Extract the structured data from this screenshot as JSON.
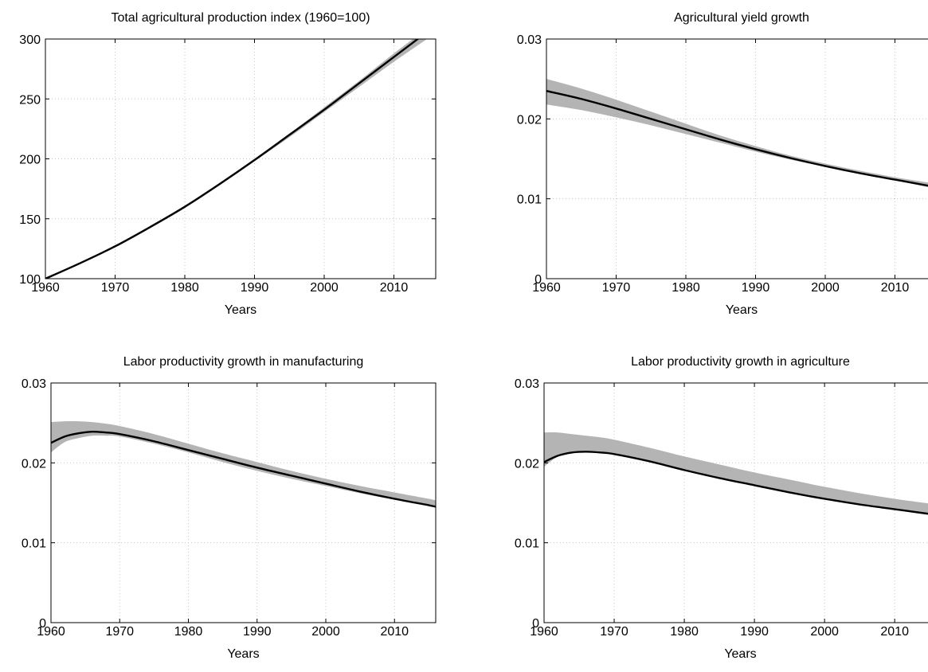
{
  "chart_data": [
    {
      "type": "line",
      "title": "Total agricultural production index (1960=100)",
      "xlabel": "Years",
      "ylabel": "",
      "xlim": [
        1960,
        2016
      ],
      "ylim": [
        100,
        300
      ],
      "xticks": [
        1960,
        1970,
        1980,
        1990,
        2000,
        2010
      ],
      "xtick_labels": [
        "1960",
        "1970",
        "1980",
        "1990",
        "2000",
        "2010"
      ],
      "yticks": [
        100,
        150,
        200,
        250,
        300
      ],
      "ytick_labels": [
        "100",
        "150",
        "200",
        "250",
        "300"
      ],
      "grid": true,
      "x": [
        1960,
        1965,
        1970,
        1975,
        1980,
        1985,
        1990,
        1995,
        2000,
        2005,
        2010,
        2015,
        2016
      ],
      "series": [
        {
          "values": [
            100,
            113,
            127,
            143,
            160,
            179,
            199,
            220,
            241,
            263,
            285,
            307,
            312
          ]
        }
      ],
      "band": {
        "lower": [
          100,
          113,
          126,
          142,
          159,
          178,
          198,
          218,
          239,
          260,
          281,
          301,
          305
        ],
        "upper": [
          100,
          113,
          127,
          143,
          161,
          180,
          200,
          221,
          243,
          265,
          288,
          310,
          316
        ]
      },
      "colors": {
        "line": "#000000",
        "band": "#b4b4b4"
      }
    },
    {
      "type": "line",
      "title": "Agricultural yield growth",
      "xlabel": "Years",
      "ylabel": "",
      "xlim": [
        1960,
        2016
      ],
      "ylim": [
        0,
        0.03
      ],
      "xticks": [
        1960,
        1970,
        1980,
        1990,
        2000,
        2010
      ],
      "xtick_labels": [
        "1960",
        "1970",
        "1980",
        "1990",
        "2000",
        "2010"
      ],
      "yticks": [
        0,
        0.01,
        0.02,
        0.03
      ],
      "ytick_labels": [
        "0",
        "0.01",
        "0.02",
        "0.03"
      ],
      "grid": true,
      "x": [
        1960,
        1965,
        1970,
        1975,
        1980,
        1985,
        1990,
        1995,
        2000,
        2005,
        2010,
        2015,
        2016
      ],
      "series": [
        {
          "values": [
            0.0235,
            0.0225,
            0.0213,
            0.02,
            0.0187,
            0.0174,
            0.0162,
            0.0151,
            0.0141,
            0.0132,
            0.0124,
            0.0116,
            0.0114
          ]
        }
      ],
      "band": {
        "lower": [
          0.0218,
          0.0211,
          0.0202,
          0.0192,
          0.0181,
          0.017,
          0.0159,
          0.0149,
          0.014,
          0.0131,
          0.0123,
          0.0114,
          0.0112
        ],
        "upper": [
          0.025,
          0.0238,
          0.0224,
          0.0209,
          0.0194,
          0.0179,
          0.0166,
          0.0154,
          0.0144,
          0.0135,
          0.0127,
          0.012,
          0.0118
        ]
      },
      "colors": {
        "line": "#000000",
        "band": "#b4b4b4"
      }
    },
    {
      "type": "line",
      "title": "Labor productivity growth in manufacturing",
      "xlabel": "Years",
      "ylabel": "",
      "xlim": [
        1960,
        2016
      ],
      "ylim": [
        0,
        0.03
      ],
      "xticks": [
        1960,
        1970,
        1980,
        1990,
        2000,
        2010
      ],
      "xtick_labels": [
        "1960",
        "1970",
        "1980",
        "1990",
        "2000",
        "2010"
      ],
      "yticks": [
        0,
        0.01,
        0.02,
        0.03
      ],
      "ytick_labels": [
        "0",
        "0.01",
        "0.02",
        "0.03"
      ],
      "grid": true,
      "x": [
        1960,
        1962,
        1964,
        1966,
        1968,
        1970,
        1975,
        1980,
        1985,
        1990,
        1995,
        2000,
        2005,
        2010,
        2015,
        2016
      ],
      "series": [
        {
          "values": [
            0.0225,
            0.0233,
            0.0237,
            0.0239,
            0.0238,
            0.0236,
            0.0227,
            0.0216,
            0.0205,
            0.0194,
            0.0184,
            0.0174,
            0.0164,
            0.0155,
            0.0147,
            0.0145
          ]
        }
      ],
      "band": {
        "lower": [
          0.0213,
          0.0226,
          0.0231,
          0.0234,
          0.0234,
          0.0233,
          0.0224,
          0.0213,
          0.0201,
          0.019,
          0.018,
          0.0171,
          0.0162,
          0.0154,
          0.0146,
          0.0144
        ],
        "upper": [
          0.0251,
          0.0252,
          0.0252,
          0.0251,
          0.0249,
          0.0246,
          0.0236,
          0.0224,
          0.0212,
          0.0201,
          0.019,
          0.018,
          0.0171,
          0.0163,
          0.0155,
          0.0153
        ]
      },
      "colors": {
        "line": "#000000",
        "band": "#b4b4b4"
      }
    },
    {
      "type": "line",
      "title": "Labor productivity growth in agriculture",
      "xlabel": "Years",
      "ylabel": "",
      "xlim": [
        1960,
        2016
      ],
      "ylim": [
        0,
        0.03
      ],
      "xticks": [
        1960,
        1970,
        1980,
        1990,
        2000,
        2010
      ],
      "xtick_labels": [
        "1960",
        "1970",
        "1980",
        "1990",
        "2000",
        "2010"
      ],
      "yticks": [
        0,
        0.01,
        0.02,
        0.03
      ],
      "ytick_labels": [
        "0",
        "0.01",
        "0.02",
        "0.03"
      ],
      "grid": true,
      "x": [
        1960,
        1962,
        1964,
        1966,
        1968,
        1970,
        1975,
        1980,
        1985,
        1990,
        1995,
        2000,
        2005,
        2010,
        2015,
        2016
      ],
      "series": [
        {
          "values": [
            0.0201,
            0.0209,
            0.0213,
            0.0214,
            0.0213,
            0.0211,
            0.0202,
            0.0191,
            0.0181,
            0.0172,
            0.0163,
            0.0155,
            0.0148,
            0.0142,
            0.0136,
            0.0135
          ]
        }
      ],
      "band": {
        "lower": [
          0.0195,
          0.0208,
          0.0213,
          0.0214,
          0.0213,
          0.0211,
          0.0202,
          0.0191,
          0.0181,
          0.0172,
          0.0163,
          0.0155,
          0.0148,
          0.0142,
          0.0136,
          0.0135
        ],
        "upper": [
          0.0238,
          0.0238,
          0.0236,
          0.0234,
          0.0232,
          0.0229,
          0.0219,
          0.0208,
          0.0198,
          0.0188,
          0.0179,
          0.017,
          0.0162,
          0.0155,
          0.0149,
          0.0148
        ]
      },
      "colors": {
        "line": "#000000",
        "band": "#b4b4b4"
      }
    }
  ]
}
